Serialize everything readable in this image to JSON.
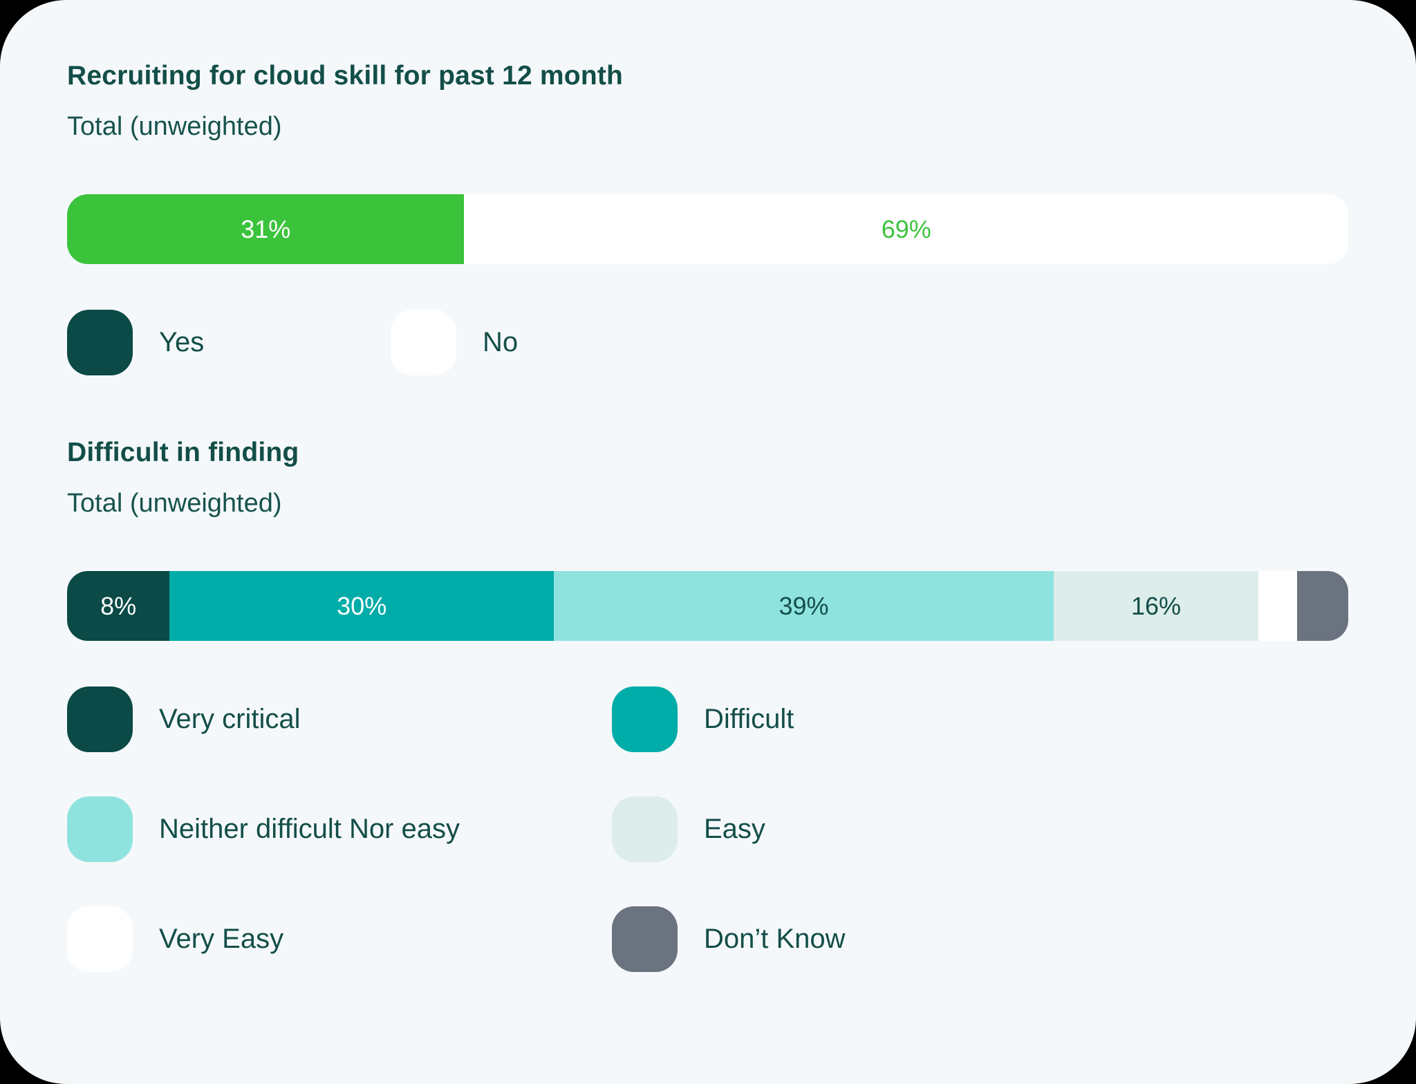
{
  "page": {
    "background": "#000000",
    "card_background": "#F5F8FA",
    "text_color": "#134E48"
  },
  "chart_data": [
    {
      "type": "bar",
      "variant": "horizontal-stacked",
      "title": "Recruiting for cloud skill for past 12 month",
      "subtitle": "Total (unweighted)",
      "xlim": [
        0,
        100
      ],
      "grid": false,
      "segments": [
        {
          "label": "Yes",
          "value": 31,
          "display": "31%",
          "color": "#3CC33C",
          "text_color": "#FFFFFF"
        },
        {
          "label": "No",
          "value": 69,
          "display": "69%",
          "color": "#FFFFFF",
          "text_color": "#3CC33C"
        }
      ],
      "legend_position": "below",
      "legend": [
        {
          "label": "Yes",
          "color": "#0B4A46"
        },
        {
          "label": "No",
          "color": "#FFFFFF"
        }
      ]
    },
    {
      "type": "bar",
      "variant": "horizontal-stacked",
      "title": "Difficult in finding",
      "subtitle": "Total (unweighted)",
      "xlim": [
        0,
        100
      ],
      "grid": false,
      "segments": [
        {
          "label": "Very critical",
          "value": 8,
          "display": "8%",
          "color": "#0B4A46",
          "text_color": "#FFFFFF"
        },
        {
          "label": "Difficult",
          "value": 30,
          "display": "30%",
          "color": "#00ACA8",
          "text_color": "#FFFFFF"
        },
        {
          "label": "Neither difficult Nor easy",
          "value": 39,
          "display": "39%",
          "color": "#8FE3DF",
          "text_color": "#134E48"
        },
        {
          "label": "Easy",
          "value": 16,
          "display": "16%",
          "color": "#DCEDEA",
          "text_color": "#134E48"
        },
        {
          "label": "Very Easy",
          "value": 3,
          "display": "",
          "color": "#FFFFFF",
          "text_color": "#134E48"
        },
        {
          "label": "Don’t Know",
          "value": 4,
          "display": "",
          "color": "#6B7380",
          "text_color": "#FFFFFF"
        }
      ],
      "legend_position": "below",
      "legend": [
        {
          "label": "Very critical",
          "color": "#0B4A46"
        },
        {
          "label": "Difficult",
          "color": "#00ACA8"
        },
        {
          "label": "Neither difficult Nor easy",
          "color": "#8FE3DF"
        },
        {
          "label": "Easy",
          "color": "#DCEDEA"
        },
        {
          "label": "Very Easy",
          "color": "#FFFFFF"
        },
        {
          "label": "Don’t Know",
          "color": "#6B7380"
        }
      ]
    }
  ]
}
